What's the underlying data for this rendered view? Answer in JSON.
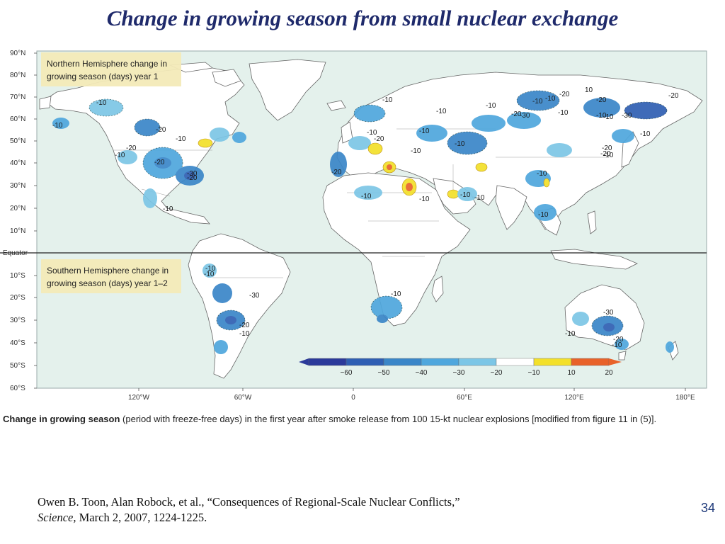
{
  "slide": {
    "title": "Change in growing season from small nuclear exchange",
    "page_number": "34"
  },
  "map": {
    "lat_labels": [
      "90°N",
      "80°N",
      "70°N",
      "60°N",
      "50°N",
      "40°N",
      "30°N",
      "20°N",
      "10°N",
      "Equator",
      "10°S",
      "20°S",
      "30°S",
      "40°S",
      "50°S",
      "60°S"
    ],
    "lon_labels": [
      "120°W",
      "60°W",
      "0",
      "60°E",
      "120°E",
      "180°E"
    ],
    "north_panel_label": "Northern Hemisphere change in growing season (days) year 1",
    "north_panel_lines": [
      "Northern Hemisphere change in",
      "growing season (days) year 1"
    ],
    "south_panel_label": "Southern Hemisphere change in growing season (days) year 1–2",
    "south_panel_lines": [
      "Southern Hemisphere change in",
      "growing season (days) year 1–2"
    ],
    "legend": {
      "ticks": [
        "−60",
        "−50",
        "−40",
        "−30",
        "−20",
        "−10",
        "10",
        "20"
      ],
      "colors": [
        "#2b3a9a",
        "#2f5fb3",
        "#3a86c8",
        "#4fa7dd",
        "#7cc6e6",
        "#ffffff",
        "#f3e02a",
        "#e8622a"
      ]
    },
    "contour_labels": [
      {
        "text": "-10"
      },
      {
        "text": "-20"
      },
      {
        "text": "-10"
      },
      {
        "text": "-20"
      },
      {
        "text": "-10"
      },
      {
        "text": "-20"
      },
      {
        "text": "-10"
      },
      {
        "text": "-30"
      },
      {
        "text": "-20"
      },
      {
        "text": "-10"
      },
      {
        "text": "-10"
      },
      {
        "text": "-10"
      },
      {
        "text": "-10"
      },
      {
        "text": "-20"
      },
      {
        "text": "-10"
      },
      {
        "text": "-10"
      },
      {
        "text": "-20"
      },
      {
        "text": "-10"
      },
      {
        "text": "-20"
      },
      {
        "text": "-10"
      },
      {
        "text": "-10"
      },
      {
        "text": "-10"
      },
      {
        "text": "-10"
      },
      {
        "text": "-30"
      },
      {
        "text": "-10"
      },
      {
        "text": "-20"
      },
      {
        "text": "10"
      },
      {
        "text": "-20"
      },
      {
        "text": "-10"
      },
      {
        "text": "-10"
      },
      {
        "text": "-30"
      },
      {
        "text": "-10"
      },
      {
        "text": "-20"
      },
      {
        "text": "-20"
      },
      {
        "text": "-10"
      },
      {
        "text": "-10"
      },
      {
        "text": "-10"
      },
      {
        "text": "-10"
      },
      {
        "text": "-10"
      },
      {
        "text": "-10"
      },
      {
        "text": "-20"
      },
      {
        "text": "-10"
      },
      {
        "text": "-30"
      },
      {
        "text": "-20"
      },
      {
        "text": "-10"
      },
      {
        "text": "-10"
      },
      {
        "text": "-10"
      },
      {
        "text": "-30"
      },
      {
        "text": "-20"
      },
      {
        "text": "-10"
      },
      {
        "text": "-10"
      }
    ]
  },
  "caption": {
    "bold": "Change in growing season",
    "rest": " (period with freeze-free days) in the first year after smoke release from 100 15-kt nuclear explosions [modified from figure 11 in (5)]."
  },
  "citation": {
    "line1": "Owen B. Toon, Alan Robock, et al., “Consequences of Regional-Scale Nuclear Conflicts,”",
    "journal": "Science,",
    "rest": " March 2, 2007, 1224-1225."
  },
  "colors": {
    "ocean": "#e4f1ec",
    "land": "#ffffff",
    "title": "#1f2a6b",
    "panel_label_bg": "#f3eab8"
  }
}
